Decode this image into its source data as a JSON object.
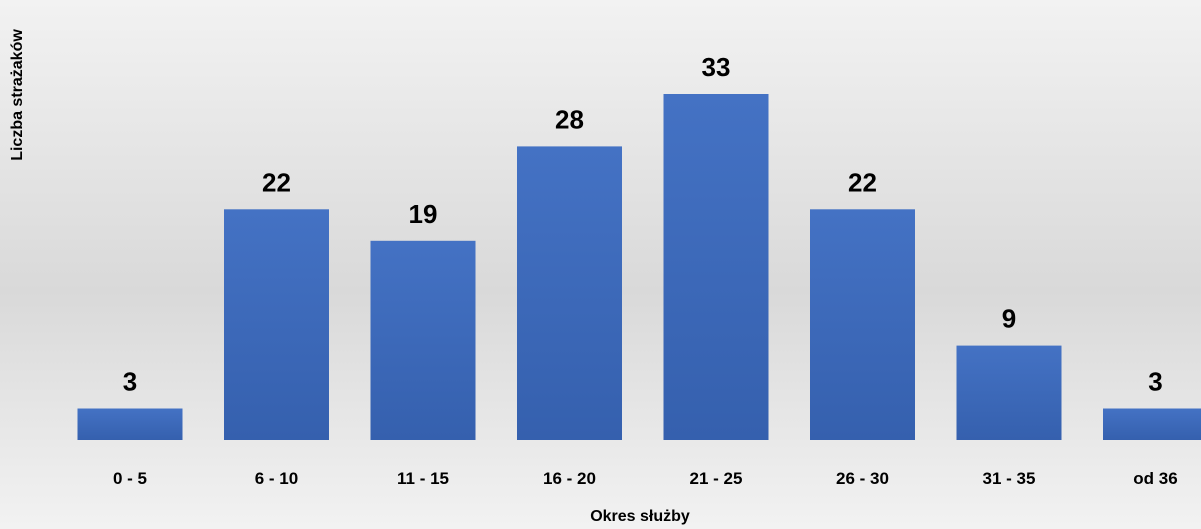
{
  "chart_data": {
    "type": "bar",
    "categories": [
      "0 - 5",
      "6 - 10",
      "11 - 15",
      "16 - 20",
      "21 - 25",
      "26 - 30",
      "31 - 35",
      "od 36"
    ],
    "values": [
      3,
      22,
      19,
      28,
      33,
      22,
      9,
      3
    ],
    "xlabel": "Okres służby",
    "ylabel": "Liczba strażaków",
    "ylim": [
      0,
      33
    ],
    "grid": false,
    "data_labels": true,
    "bar_color": "#4472c4",
    "bar_color_dark": "#3560ae"
  }
}
